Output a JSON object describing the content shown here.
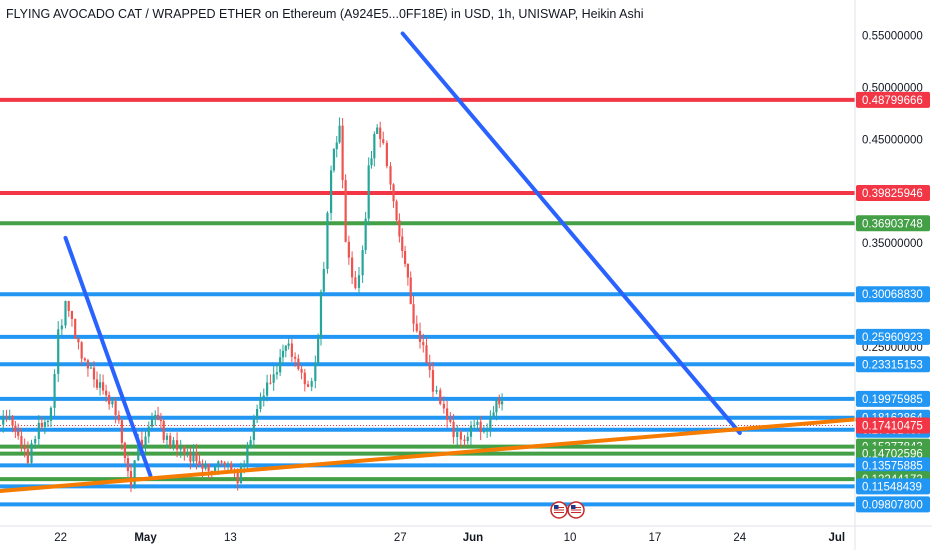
{
  "chart_data": {
    "type": "candlestick",
    "title": "FLYING AVOCADO CAT / WRAPPED ETHER on Ethereum (A924E5...0FF18E) in USD, 1h, UNISWAP, Heikin Ashi",
    "ylim": [
      0.085,
      0.565
    ],
    "y_ticks": [
      "0.55000000",
      "0.50000000",
      "0.45000000",
      "0.35000000",
      "0.25000000"
    ],
    "x_ticks": [
      "22",
      "May",
      "13",
      "27",
      "Jun",
      "10",
      "17",
      "24",
      "Jul"
    ],
    "x_tick_positions": [
      22,
      29,
      36,
      50,
      56,
      64,
      71,
      78,
      86
    ],
    "x_range": [
      17,
      87.5
    ],
    "horizontal_levels": [
      {
        "label": "0.48799666",
        "value": 0.48799666,
        "color": "#f23645"
      },
      {
        "label": "0.39825946",
        "value": 0.39825946,
        "color": "#f23645"
      },
      {
        "label": "0.36903748",
        "value": 0.36903748,
        "color": "#43a047"
      },
      {
        "label": "0.30068830",
        "value": 0.3006883,
        "color": "#2196f3"
      },
      {
        "label": "0.25960923",
        "value": 0.25960923,
        "color": "#2196f3"
      },
      {
        "label": "0.23315153",
        "value": 0.23315153,
        "color": "#2196f3"
      },
      {
        "label": "0.19975985",
        "value": 0.19975985,
        "color": "#2196f3"
      },
      {
        "label": "0.18162864",
        "value": 0.18162864,
        "color": "#2196f3"
      },
      {
        "label": "0.17001407",
        "value": 0.17001407,
        "color": "#2196f3"
      },
      {
        "label": "0.15377843",
        "value": 0.15377843,
        "color": "#43a047"
      },
      {
        "label": "0.14702596",
        "value": 0.14702596,
        "color": "#43a047"
      },
      {
        "label": "0.13575885",
        "value": 0.13575885,
        "color": "#2196f3"
      },
      {
        "label": "0.12244172",
        "value": 0.12244172,
        "color": "#43a047"
      },
      {
        "label": "0.11548439",
        "value": 0.11548439,
        "color": "#2196f3"
      },
      {
        "label": "0.09807800",
        "value": 0.098078,
        "color": "#2196f3"
      }
    ],
    "current_price": {
      "label": "0.17410475",
      "value": 0.17410475,
      "color": "#f23645"
    },
    "trendlines": [
      {
        "name": "downtrend-1",
        "color": "#2962ff",
        "points": [
          [
            22.4,
            0.355
          ],
          [
            29.4,
            0.126
          ]
        ]
      },
      {
        "name": "downtrend-2",
        "color": "#2962ff",
        "points": [
          [
            50.2,
            0.552
          ],
          [
            78,
            0.167
          ]
        ]
      },
      {
        "name": "uptrend-support",
        "color": "#f57c00",
        "points": [
          [
            17,
            0.111
          ],
          [
            87.5,
            0.18
          ]
        ]
      }
    ],
    "price_path": [
      [
        17,
        0.175
      ],
      [
        17.8,
        0.185
      ],
      [
        18.5,
        0.16
      ],
      [
        19.3,
        0.145
      ],
      [
        20.2,
        0.172
      ],
      [
        21.2,
        0.185
      ],
      [
        21.8,
        0.26
      ],
      [
        22.4,
        0.295
      ],
      [
        23.2,
        0.265
      ],
      [
        24,
        0.235
      ],
      [
        25,
        0.215
      ],
      [
        26,
        0.2
      ],
      [
        26.8,
        0.175
      ],
      [
        27.3,
        0.145
      ],
      [
        27.8,
        0.12
      ],
      [
        28.4,
        0.155
      ],
      [
        29,
        0.165
      ],
      [
        29.8,
        0.19
      ],
      [
        30.5,
        0.165
      ],
      [
        31.3,
        0.16
      ],
      [
        32.2,
        0.15
      ],
      [
        33.2,
        0.14
      ],
      [
        34.2,
        0.13
      ],
      [
        35,
        0.14
      ],
      [
        35.8,
        0.132
      ],
      [
        36.6,
        0.123
      ],
      [
        37.4,
        0.155
      ],
      [
        38.2,
        0.19
      ],
      [
        39.3,
        0.215
      ],
      [
        40.1,
        0.24
      ],
      [
        40.8,
        0.255
      ],
      [
        41.6,
        0.23
      ],
      [
        42.4,
        0.205
      ],
      [
        43,
        0.23
      ],
      [
        43.7,
        0.33
      ],
      [
        44.3,
        0.42
      ],
      [
        45,
        0.465
      ],
      [
        45.5,
        0.35
      ],
      [
        46.3,
        0.3
      ],
      [
        46.9,
        0.34
      ],
      [
        47.4,
        0.42
      ],
      [
        48.1,
        0.465
      ],
      [
        48.6,
        0.445
      ],
      [
        49.2,
        0.405
      ],
      [
        49.7,
        0.37
      ],
      [
        50.4,
        0.33
      ],
      [
        51.1,
        0.275
      ],
      [
        51.9,
        0.245
      ],
      [
        52.7,
        0.21
      ],
      [
        53.6,
        0.185
      ],
      [
        54.4,
        0.165
      ],
      [
        55.3,
        0.155
      ],
      [
        56.1,
        0.175
      ],
      [
        56.9,
        0.17
      ],
      [
        57.7,
        0.19
      ],
      [
        58.4,
        0.2
      ]
    ]
  }
}
